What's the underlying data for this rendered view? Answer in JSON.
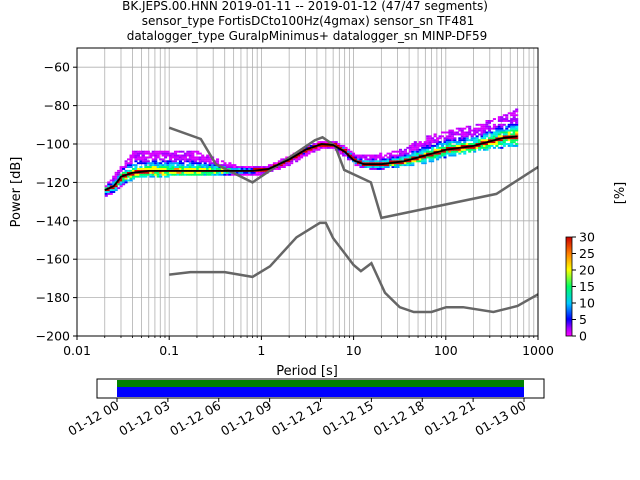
{
  "title_lines": [
    "BK.JEPS.00.HNN   2019-01-11 -- 2019-01-12  (47/47 segments)",
    "sensor_type FortisDCto100Hz(4gmax) sensor_sn TF481",
    "datalogger_type GuralpMinimus+ datalogger_sn MINP-DF59"
  ],
  "chart_data": {
    "type": "heatmap",
    "xlabel": "Period [s]",
    "ylabel": "Power [dB]",
    "x_scale": "log",
    "xlim": [
      0.01,
      1000
    ],
    "ylim": [
      -200,
      -50
    ],
    "x_ticks": [
      {
        "value": 0.01,
        "label": "0.01"
      },
      {
        "value": 0.1,
        "label": "0.1"
      },
      {
        "value": 1,
        "label": "1"
      },
      {
        "value": 10,
        "label": "10"
      },
      {
        "value": 100,
        "label": "100"
      },
      {
        "value": 1000,
        "label": "1000"
      }
    ],
    "y_ticks": [
      {
        "value": -60,
        "label": "−60"
      },
      {
        "value": -80,
        "label": "−80"
      },
      {
        "value": -100,
        "label": "−100"
      },
      {
        "value": -120,
        "label": "−120"
      },
      {
        "value": -140,
        "label": "−140"
      },
      {
        "value": -160,
        "label": "−160"
      },
      {
        "value": -180,
        "label": "−180"
      },
      {
        "value": -200,
        "label": "−200"
      }
    ],
    "grid": true,
    "colorbar": {
      "label": "[%]",
      "range": [
        0,
        30
      ],
      "ticks": [
        "0",
        "5",
        "10",
        "15",
        "20",
        "25",
        "30"
      ]
    },
    "noise_models": {
      "high": [
        [
          0.1,
          -91.5
        ],
        [
          0.22,
          -97.4
        ],
        [
          0.32,
          -110.5
        ],
        [
          0.8,
          -120
        ],
        [
          3.8,
          -98
        ],
        [
          4.6,
          -96.5
        ],
        [
          6.3,
          -101
        ],
        [
          7.9,
          -113.5
        ],
        [
          15.4,
          -120
        ],
        [
          20,
          -138.5
        ],
        [
          354,
          -126
        ],
        [
          1000,
          -112
        ]
      ],
      "low": [
        [
          0.1,
          -168
        ],
        [
          0.17,
          -166.7
        ],
        [
          0.4,
          -166.7
        ],
        [
          0.8,
          -169.2
        ],
        [
          1.24,
          -163.7
        ],
        [
          2.4,
          -148.6
        ],
        [
          4.3,
          -141.1
        ],
        [
          5.0,
          -141.1
        ],
        [
          6.0,
          -149
        ],
        [
          10,
          -163
        ],
        [
          12,
          -166.2
        ],
        [
          15.6,
          -162.1
        ],
        [
          21.9,
          -177.5
        ],
        [
          31.6,
          -185
        ],
        [
          45,
          -187.5
        ],
        [
          70,
          -187.5
        ],
        [
          101,
          -185
        ],
        [
          154,
          -185
        ],
        [
          328,
          -187.5
        ],
        [
          600,
          -184.4
        ],
        [
          1000,
          -178.3
        ]
      ]
    },
    "mode_curve": [
      [
        0.02,
        -124
      ],
      [
        0.025,
        -122
      ],
      [
        0.028,
        -119
      ],
      [
        0.03,
        -117
      ],
      [
        0.04,
        -115
      ],
      [
        0.06,
        -114
      ],
      [
        0.1,
        -114
      ],
      [
        0.2,
        -114
      ],
      [
        0.4,
        -114
      ],
      [
        0.8,
        -114
      ],
      [
        1.2,
        -113
      ],
      [
        2,
        -108
      ],
      [
        3,
        -103
      ],
      [
        4.5,
        -100
      ],
      [
        6,
        -100.5
      ],
      [
        8,
        -104
      ],
      [
        10,
        -108.5
      ],
      [
        13,
        -110.5
      ],
      [
        20,
        -110.5
      ],
      [
        35,
        -109
      ],
      [
        60,
        -106
      ],
      [
        100,
        -103
      ],
      [
        200,
        -101
      ],
      [
        400,
        -97
      ],
      [
        600,
        -96
      ]
    ],
    "spread_upper": [
      [
        0.02,
        -122
      ],
      [
        0.03,
        -112
      ],
      [
        0.04,
        -104
      ],
      [
        0.1,
        -104
      ],
      [
        0.2,
        -105
      ],
      [
        0.3,
        -108
      ],
      [
        0.5,
        -112
      ],
      [
        1,
        -113
      ],
      [
        2,
        -107
      ],
      [
        3,
        -102
      ],
      [
        4.5,
        -99
      ],
      [
        6,
        -99
      ],
      [
        8,
        -102
      ],
      [
        10,
        -106
      ],
      [
        15,
        -107
      ],
      [
        30,
        -104
      ],
      [
        60,
        -97
      ],
      [
        100,
        -94
      ],
      [
        200,
        -91
      ],
      [
        400,
        -86
      ],
      [
        680,
        -81
      ]
    ],
    "spread_lower": [
      [
        0.02,
        -127
      ],
      [
        0.03,
        -121
      ],
      [
        0.04,
        -117
      ],
      [
        0.1,
        -116
      ],
      [
        0.3,
        -116
      ],
      [
        1,
        -115
      ],
      [
        2,
        -110
      ],
      [
        3,
        -105
      ],
      [
        4.5,
        -101
      ],
      [
        6,
        -102
      ],
      [
        8,
        -106
      ],
      [
        10,
        -110
      ],
      [
        15,
        -113
      ],
      [
        30,
        -111
      ],
      [
        60,
        -109
      ],
      [
        100,
        -106
      ],
      [
        200,
        -103
      ],
      [
        400,
        -101
      ],
      [
        680,
        -101
      ]
    ]
  },
  "timeline": {
    "tick_labels": [
      "01-12 00",
      "01-12 03",
      "01-12 06",
      "01-12 09",
      "01-12 12",
      "01-12 15",
      "01-12 18",
      "01-12 21",
      "01-13 00"
    ],
    "bar_colors": [
      "#008000",
      "#0000ff"
    ]
  },
  "colors": {
    "noise_model": "#666666",
    "mode": "#000000",
    "grid": "#b0b0b0"
  }
}
